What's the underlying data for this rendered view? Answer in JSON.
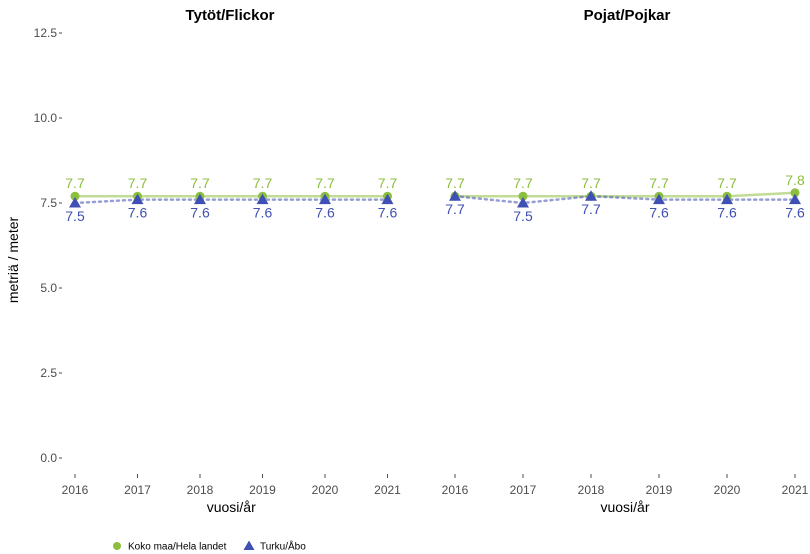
{
  "chart_data": {
    "type": "line",
    "ylabel": "metriä / meter",
    "xlabel": "vuosi/år",
    "ylim": [
      0,
      12.5
    ],
    "yticks": [
      "0.0",
      "2.5",
      "5.0",
      "7.5",
      "10.0",
      "12.5"
    ],
    "grid": false,
    "legend_position": "bottom-left",
    "colors": {
      "koko": "#8cbf3f",
      "turku": "#3f4fb3"
    },
    "legend": [
      {
        "name": "Koko maa/Hela landet",
        "marker": "circle",
        "color": "#8cbf3f"
      },
      {
        "name": "Turku/Åbo",
        "marker": "triangle",
        "color": "#3f4fb3"
      }
    ],
    "panels": [
      {
        "title": "Tytöt/Flickor",
        "x": [
          "2016",
          "2017",
          "2018",
          "2019",
          "2020",
          "2021"
        ],
        "series": [
          {
            "name": "Koko maa/Hela landet",
            "values": [
              7.7,
              7.7,
              7.7,
              7.7,
              7.7,
              7.7
            ],
            "labels": [
              "7.7",
              "7.7",
              "7.7",
              "7.7",
              "7.7",
              "7.7"
            ]
          },
          {
            "name": "Turku/Åbo",
            "values": [
              7.5,
              7.6,
              7.6,
              7.6,
              7.6,
              7.6
            ],
            "labels": [
              "7.5",
              "7.6",
              "7.6",
              "7.6",
              "7.6",
              "7.6"
            ]
          }
        ]
      },
      {
        "title": "Pojat/Pojkar",
        "x": [
          "2016",
          "2017",
          "2018",
          "2019",
          "2020",
          "2021"
        ],
        "series": [
          {
            "name": "Koko maa/Hela landet",
            "values": [
              7.7,
              7.7,
              7.7,
              7.7,
              7.7,
              7.8
            ],
            "labels": [
              "7.7",
              "7.7",
              "7.7",
              "7.7",
              "7.7",
              "7.8"
            ]
          },
          {
            "name": "Turku/Åbo",
            "values": [
              7.7,
              7.5,
              7.7,
              7.6,
              7.6,
              7.6
            ],
            "labels": [
              "7.7",
              "7.5",
              "7.7",
              "7.6",
              "7.6",
              "7.6"
            ]
          }
        ]
      }
    ]
  }
}
